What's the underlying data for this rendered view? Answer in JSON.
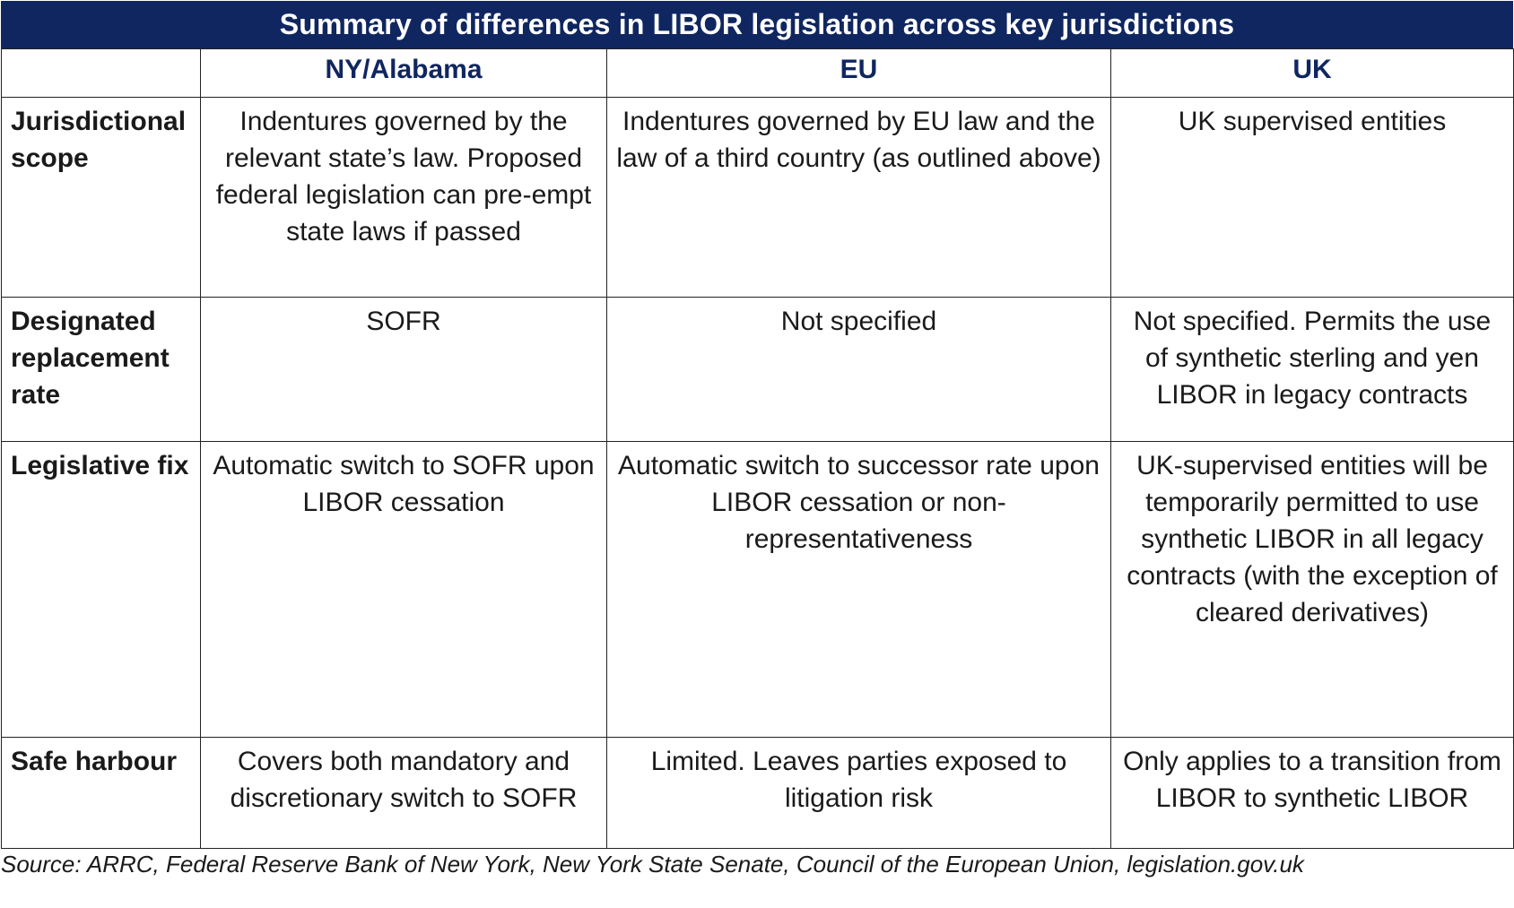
{
  "title": "Summary of differences in LIBOR legislation across key jurisdictions",
  "columns": [
    "",
    "NY/Alabama",
    "EU",
    "UK"
  ],
  "rows": [
    {
      "label": "Jurisdictional scope",
      "cells": [
        "Indentures governed by the relevant state’s law. Proposed federal legislation can pre-empt state laws if passed",
        "Indentures governed by EU law and the law of a third country (as outlined above)",
        "UK supervised entities"
      ]
    },
    {
      "label": "Designated replacement rate",
      "cells": [
        "SOFR",
        "Not specified",
        "Not specified. Permits the use of synthetic sterling and yen LIBOR in legacy contracts"
      ]
    },
    {
      "label": "Legislative fix",
      "cells": [
        "Automatic switch to SOFR upon LIBOR cessation",
        "Automatic switch to successor rate upon LIBOR cessation or non-representativeness",
        "UK-supervised entities will be temporarily permitted to use synthetic LIBOR in all legacy contracts (with the exception of cleared derivatives)"
      ]
    },
    {
      "label": "Safe harbour",
      "cells": [
        "Covers both mandatory and discretionary switch to SOFR",
        "Limited. Leaves parties exposed to litigation risk",
        "Only applies to a transition from LIBOR to synthetic LIBOR"
      ]
    }
  ],
  "source": "Source: ARRC, Federal Reserve Bank of New York, New York State Senate, Council of the European Union, legislation.gov.uk",
  "colors": {
    "header_bg": "#102660",
    "header_text": "#ffffff",
    "accent_text": "#102660",
    "body_text": "#1a1a1a",
    "border": "#222222"
  }
}
